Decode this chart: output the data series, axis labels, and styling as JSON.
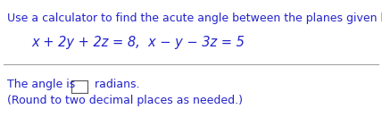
{
  "line1": "Use a calculator to find the acute angle between the planes given below.",
  "line2": "x + 2y + 2z = 8,  x − y − 3z = 5",
  "line3_before": "The angle is ",
  "line3_after": " radians.",
  "line4": "(Round to two decimal places as needed.)",
  "text_color": "#2222cc",
  "background_color": "#ffffff",
  "divider_color": "#999999",
  "font_size_main": 9.0,
  "font_size_equation": 10.5,
  "font_size_bottom": 9.0
}
